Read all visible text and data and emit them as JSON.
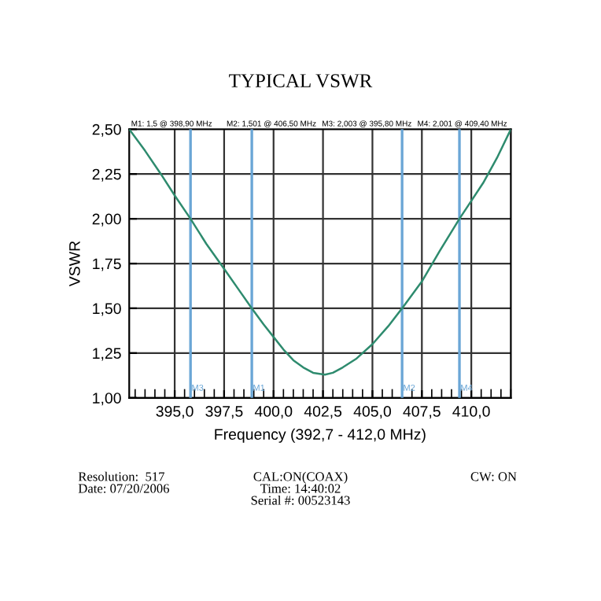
{
  "chart_data": {
    "type": "line",
    "title": "TYPICAL VSWR",
    "xlabel": "Frequency (392,7 - 412,0 MHz)",
    "ylabel": "VSWR",
    "x": [
      392.7,
      393.5,
      394.3,
      395.0,
      395.8,
      396.6,
      397.5,
      398.2,
      398.9,
      399.5,
      400.0,
      400.5,
      401.0,
      401.5,
      402.0,
      402.6,
      403.0,
      403.5,
      404.2,
      405.0,
      405.8,
      406.5,
      407.5,
      408.4,
      409.4,
      410.0,
      410.6,
      411.3,
      412.0
    ],
    "series": [
      {
        "color": "#2e8b6e",
        "values": [
          2.5,
          2.38,
          2.25,
          2.13,
          2.0,
          1.86,
          1.72,
          1.61,
          1.5,
          1.41,
          1.34,
          1.27,
          1.21,
          1.17,
          1.14,
          1.13,
          1.14,
          1.17,
          1.22,
          1.3,
          1.4,
          1.5,
          1.65,
          1.82,
          2.0,
          2.1,
          2.2,
          2.34,
          2.5
        ]
      }
    ],
    "xlim": [
      392.7,
      412.0
    ],
    "ylim": [
      1.0,
      2.5
    ],
    "xticks": [
      {
        "value": 395.0,
        "label": "395,0"
      },
      {
        "value": 397.5,
        "label": "397,5"
      },
      {
        "value": 400.0,
        "label": "400,0"
      },
      {
        "value": 402.5,
        "label": "402,5"
      },
      {
        "value": 405.0,
        "label": "405,0"
      },
      {
        "value": 407.5,
        "label": "407,5"
      },
      {
        "value": 410.0,
        "label": "410,0"
      }
    ],
    "yticks": [
      {
        "value": 1.0,
        "label": "1,00"
      },
      {
        "value": 1.25,
        "label": "1,25"
      },
      {
        "value": 1.5,
        "label": "1,50"
      },
      {
        "value": 1.75,
        "label": "1,75"
      },
      {
        "value": 2.0,
        "label": "2,00"
      },
      {
        "value": 2.25,
        "label": "2,25"
      },
      {
        "value": 2.5,
        "label": "2,50"
      }
    ],
    "grid": true,
    "marker": "none",
    "line_style": "solid",
    "ref_lines": [
      {
        "axis": "x",
        "value": 398.9,
        "label": "M1",
        "color": "#6aa6d6"
      },
      {
        "axis": "x",
        "value": 406.5,
        "label": "M2",
        "color": "#6aa6d6"
      },
      {
        "axis": "x",
        "value": 395.8,
        "label": "M3",
        "color": "#6aa6d6"
      },
      {
        "axis": "x",
        "value": 409.4,
        "label": "M4",
        "color": "#6aa6d6"
      }
    ],
    "annotations": [
      "M1: 1,5 @ 398,90 MHz",
      "M2: 1,501 @ 406,50 MHz",
      "M3: 2,003 @ 395,80 MHz",
      "M4: 2,001 @ 409,40 MHz",
      "Resolution:  517\nDate: 07/20/2006",
      "CAL:ON(COAX)\nTime: 14:40:02\nSerial #: 00523143",
      "CW: ON"
    ]
  }
}
